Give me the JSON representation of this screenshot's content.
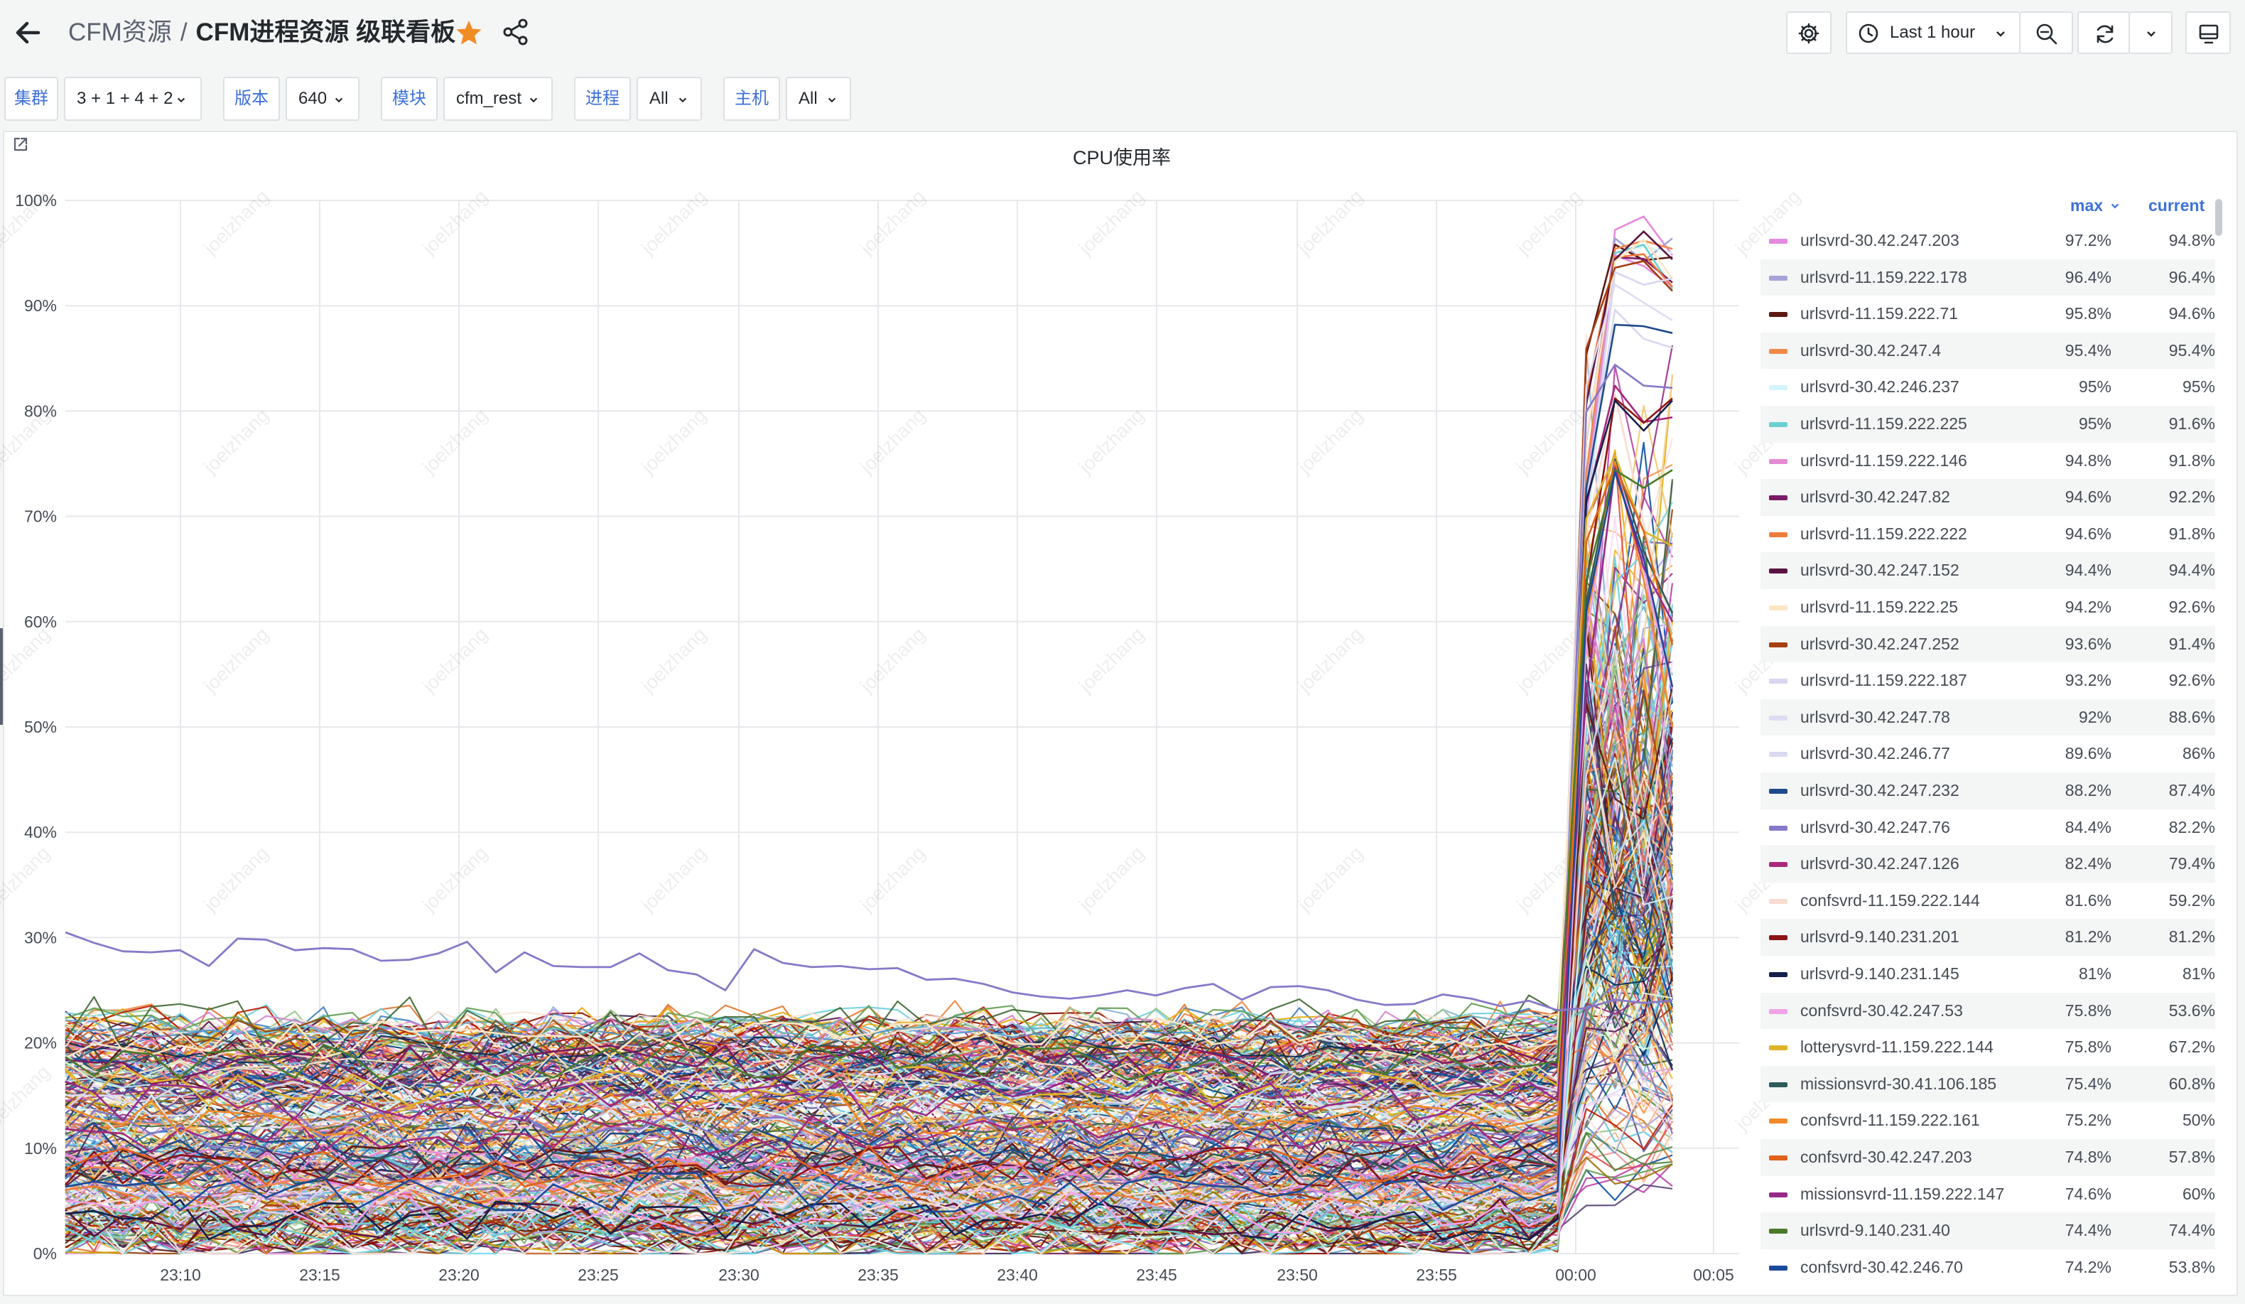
{
  "header": {
    "parent": "CFM资源",
    "separator": "/",
    "title": "CFM进程资源 级联看板",
    "time_range": "Last 1 hour"
  },
  "variables": [
    {
      "label": "集群",
      "value": "3 + 1 + 4 + 2"
    },
    {
      "label": "版本",
      "value": "640"
    },
    {
      "label": "模块",
      "value": "cfm_rest"
    },
    {
      "label": "进程",
      "value": "All"
    },
    {
      "label": "主机",
      "value": "All"
    }
  ],
  "watermark": "joelzhang",
  "colors": {
    "accent": "#3d71d9",
    "star": "#f08c24"
  },
  "chart_data": {
    "type": "line",
    "title": "CPU使用率",
    "x_ticks": [
      "23:10",
      "23:15",
      "23:20",
      "23:25",
      "23:30",
      "23:35",
      "23:40",
      "23:45",
      "23:50",
      "23:55",
      "00:00",
      "00:05"
    ],
    "y_ticks": [
      "0%",
      "10%",
      "20%",
      "30%",
      "40%",
      "50%",
      "60%",
      "70%",
      "80%",
      "90%",
      "100%"
    ],
    "ylim": [
      0,
      100
    ],
    "grid": true,
    "legend_position": "right",
    "legend_columns": [
      "max",
      "current"
    ],
    "series": [
      {
        "name": "urlsvrd-30.42.247.203",
        "max": "97.2%",
        "current": "94.8%",
        "color": "#e58ae0"
      },
      {
        "name": "urlsvrd-11.159.222.178",
        "max": "96.4%",
        "current": "96.4%",
        "color": "#a6a3d8"
      },
      {
        "name": "urlsvrd-11.159.222.71",
        "max": "95.8%",
        "current": "94.6%",
        "color": "#5c1a12"
      },
      {
        "name": "urlsvrd-30.42.247.4",
        "max": "95.4%",
        "current": "95.4%",
        "color": "#f0884a"
      },
      {
        "name": "urlsvrd-30.42.246.237",
        "max": "95%",
        "current": "95%",
        "color": "#d2f4fb"
      },
      {
        "name": "urlsvrd-11.159.222.225",
        "max": "95%",
        "current": "91.6%",
        "color": "#6cd0d0"
      },
      {
        "name": "urlsvrd-11.159.222.146",
        "max": "94.8%",
        "current": "91.8%",
        "color": "#e58ad6"
      },
      {
        "name": "urlsvrd-30.42.247.82",
        "max": "94.6%",
        "current": "92.2%",
        "color": "#7b1a66"
      },
      {
        "name": "urlsvrd-11.159.222.222",
        "max": "94.6%",
        "current": "91.8%",
        "color": "#f07c3c"
      },
      {
        "name": "urlsvrd-30.42.247.152",
        "max": "94.4%",
        "current": "94.4%",
        "color": "#5a1442"
      },
      {
        "name": "urlsvrd-11.159.222.25",
        "max": "94.2%",
        "current": "92.6%",
        "color": "#fce6c4"
      },
      {
        "name": "urlsvrd-30.42.247.252",
        "max": "93.6%",
        "current": "91.4%",
        "color": "#a63f12"
      },
      {
        "name": "urlsvrd-11.159.222.187",
        "max": "93.2%",
        "current": "92.6%",
        "color": "#d8d6f0"
      },
      {
        "name": "urlsvrd-30.42.247.78",
        "max": "92%",
        "current": "88.6%",
        "color": "#dedcf2"
      },
      {
        "name": "urlsvrd-30.42.246.77",
        "max": "89.6%",
        "current": "86%",
        "color": "#d9d9ef"
      },
      {
        "name": "urlsvrd-30.42.247.232",
        "max": "88.2%",
        "current": "87.4%",
        "color": "#1f4a8a"
      },
      {
        "name": "urlsvrd-30.42.247.76",
        "max": "84.4%",
        "current": "82.2%",
        "color": "#8679c8"
      },
      {
        "name": "urlsvrd-30.42.247.126",
        "max": "82.4%",
        "current": "79.4%",
        "color": "#a8287a"
      },
      {
        "name": "confsvrd-11.159.222.144",
        "max": "81.6%",
        "current": "59.2%",
        "color": "#f8dcd2"
      },
      {
        "name": "urlsvrd-9.140.231.201",
        "max": "81.2%",
        "current": "81.2%",
        "color": "#8c1414"
      },
      {
        "name": "urlsvrd-9.140.231.145",
        "max": "81%",
        "current": "81%",
        "color": "#14204a"
      },
      {
        "name": "confsvrd-30.42.247.53",
        "max": "75.8%",
        "current": "53.6%",
        "color": "#f0a2e8"
      },
      {
        "name": "lotterysvrd-11.159.222.144",
        "max": "75.8%",
        "current": "67.2%",
        "color": "#e0b42a"
      },
      {
        "name": "missionsvrd-30.41.106.185",
        "max": "75.4%",
        "current": "60.8%",
        "color": "#2e5a5a"
      },
      {
        "name": "confsvrd-11.159.222.161",
        "max": "75.2%",
        "current": "50%",
        "color": "#f08a2a"
      },
      {
        "name": "confsvrd-30.42.247.203",
        "max": "74.8%",
        "current": "57.8%",
        "color": "#e0621a"
      },
      {
        "name": "missionsvrd-11.159.222.147",
        "max": "74.6%",
        "current": "60%",
        "color": "#962a8a"
      },
      {
        "name": "urlsvrd-9.140.231.40",
        "max": "74.4%",
        "current": "74.4%",
        "color": "#4a7a2a"
      },
      {
        "name": "confsvrd-30.42.246.70",
        "max": "74.2%",
        "current": "53.8%",
        "color": "#1a4a9a"
      }
    ],
    "highlighted_series_values": [
      30.5,
      29.5,
      28.7,
      28.6,
      28.8,
      27.3,
      29.9,
      29.8,
      28.8,
      29.0,
      28.9,
      27.8,
      27.9,
      28.5,
      29.6,
      26.7,
      28.6,
      27.3,
      27.2,
      27.2,
      28.5,
      26.9,
      26.5,
      25.0,
      28.9,
      27.6,
      27.2,
      27.3,
      27.0,
      27.1,
      26.0,
      26.1,
      25.6,
      24.8,
      24.4,
      24.2,
      24.5,
      25.0,
      24.5,
      25.2,
      25.6,
      24.1,
      25.3,
      25.4,
      25.0,
      24.1,
      23.6,
      23.7,
      24.6,
      24.2,
      23.5,
      24.0,
      23.1,
      23.3,
      24.1,
      23.8,
      24.0
    ],
    "highlighted_series_color": "#8679c8"
  }
}
